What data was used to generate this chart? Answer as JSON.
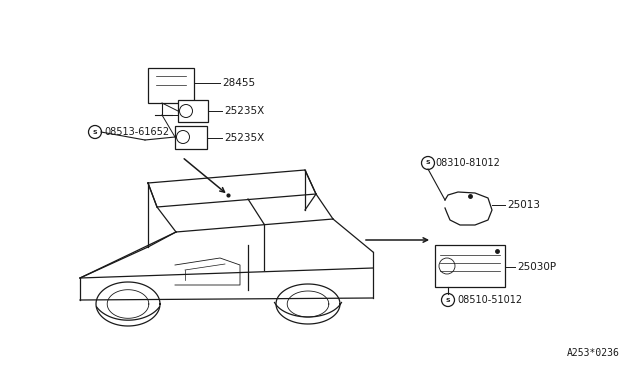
{
  "bg_color": "#ffffff",
  "line_color": "#1a1a1a",
  "figure_code": "A253*0236",
  "label_28455": "28455",
  "label_25235X_1": "25235X",
  "label_25235X_2": "25235X",
  "label_08513": "08513-61652",
  "label_08310": "08310-81012",
  "label_25013": "25013",
  "label_25030P": "25030P",
  "label_08510": "08510-51012"
}
